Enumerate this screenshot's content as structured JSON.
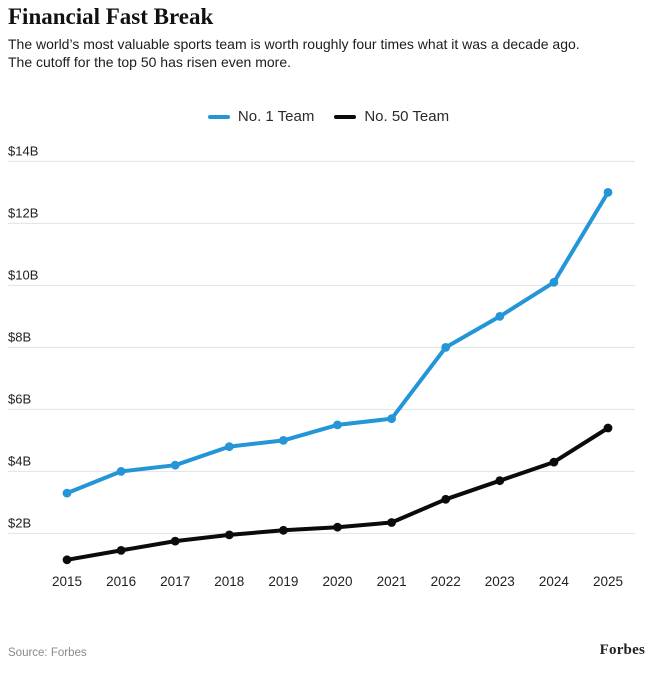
{
  "header": {
    "title": "Financial Fast Break",
    "subtitle_line1": "The world’s most valuable sports team is worth roughly four times what it was a decade ago.",
    "subtitle_line2": "The cutoff for the top 50 has risen even more."
  },
  "footer": {
    "source": "Source: Forbes",
    "brand": "Forbes"
  },
  "colors": {
    "no1_line": "#2496d8",
    "no50_line": "#0b0b0b",
    "gridline": "#e3e3e3",
    "axis_text": "#222222"
  },
  "chart_data": {
    "type": "line",
    "title": "Financial Fast Break",
    "x": [
      2015,
      2016,
      2017,
      2018,
      2019,
      2020,
      2021,
      2022,
      2023,
      2024,
      2025
    ],
    "series": [
      {
        "name": "No. 1 Team",
        "color": "#2496d8",
        "values": [
          3.3,
          4.0,
          4.2,
          4.8,
          5.0,
          5.5,
          5.7,
          8.0,
          9.0,
          10.1,
          13.0
        ]
      },
      {
        "name": "No. 50 Team",
        "color": "#0b0b0b",
        "values": [
          1.15,
          1.45,
          1.75,
          1.95,
          2.1,
          2.2,
          2.35,
          3.1,
          3.7,
          4.3,
          5.4
        ]
      }
    ],
    "yticks": [
      2,
      4,
      6,
      8,
      10,
      12,
      14
    ],
    "ytick_labels": [
      "$2B",
      "$4B",
      "$6B",
      "$8B",
      "$10B",
      "$12B",
      "$14B"
    ],
    "ylim": [
      0,
      14.9
    ],
    "grid": true,
    "legend_position": "top-center",
    "marker": "circle"
  }
}
